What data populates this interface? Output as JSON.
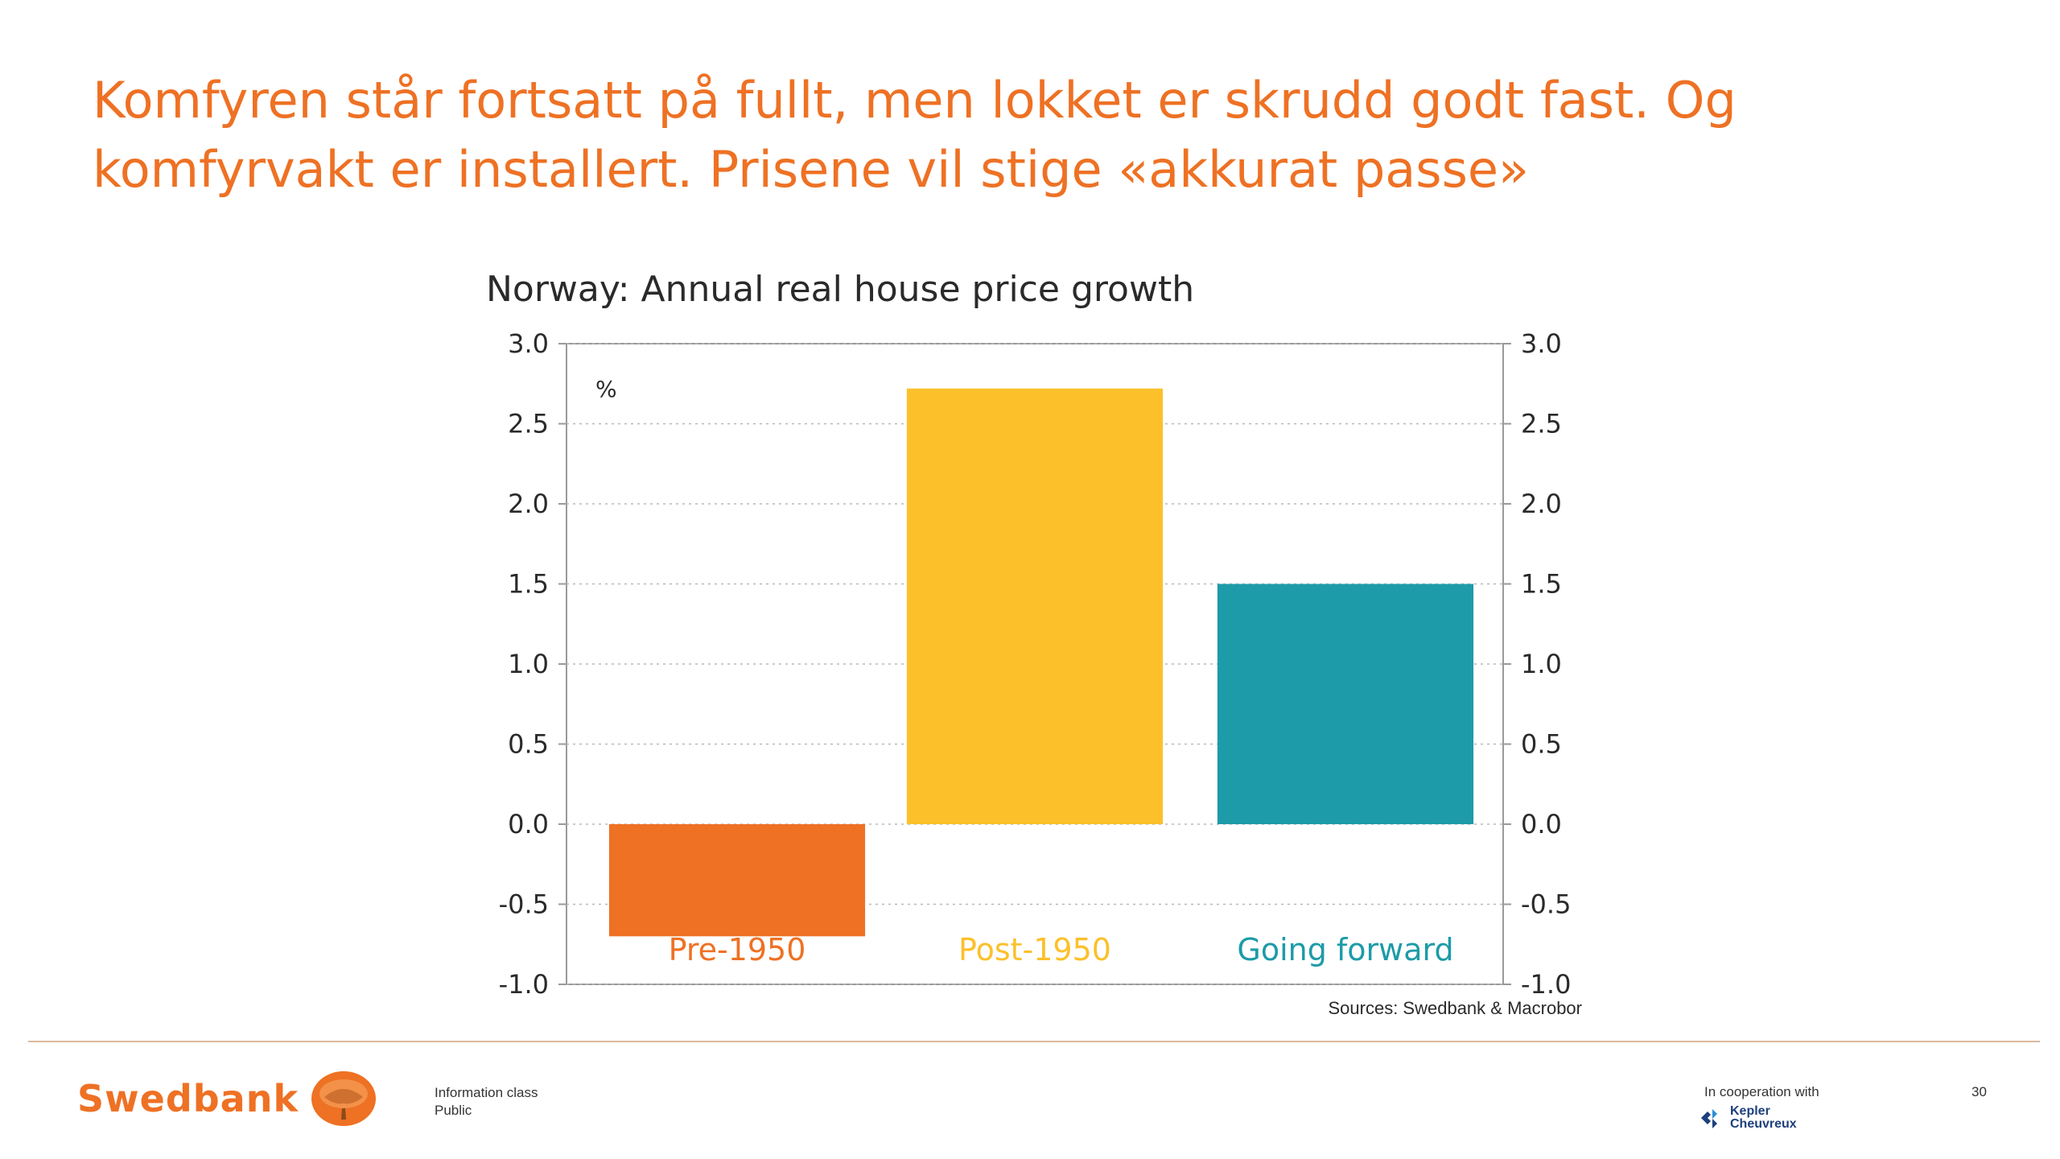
{
  "slide": {
    "title_line1": "Komfyren står fortsatt på fullt, men lokket er skrudd godt fast. Og",
    "title_line2": "komfyrvakt er installert. Prisene vil stige «akkurat passe»",
    "page_number": "30"
  },
  "chart_data": {
    "type": "bar",
    "title": "Norway: Annual real house price growth",
    "unit_label": "%",
    "categories": [
      "Pre-1950",
      "Post-1950",
      "Going forward"
    ],
    "values": [
      -0.7,
      2.72,
      1.5
    ],
    "colors": [
      "#EE7124",
      "#FCC02B",
      "#1D9BA8"
    ],
    "ylim": [
      -1.0,
      3.0
    ],
    "yticks": [
      "3.0",
      "2.5",
      "2.0",
      "1.5",
      "1.0",
      "0.5",
      "0.0",
      "-0.5",
      "-1.0"
    ],
    "ytick_values": [
      3.0,
      2.5,
      2.0,
      1.5,
      1.0,
      0.5,
      0.0,
      -0.5,
      -1.0
    ],
    "dual_y_axis": true,
    "grid": "horizontal dotted",
    "category_labels_position": "bottom inside plot",
    "source": "Sources: Swedbank & Macrobor"
  },
  "footer": {
    "brand": "Swedbank",
    "info_line1": "Information class",
    "info_line2": "Public",
    "coop_label": "In cooperation with",
    "partner_line1": "Kepler",
    "partner_line2": "Cheuvreux",
    "brand_color": "#EE7124",
    "partner_color": "#1d3f7c"
  }
}
